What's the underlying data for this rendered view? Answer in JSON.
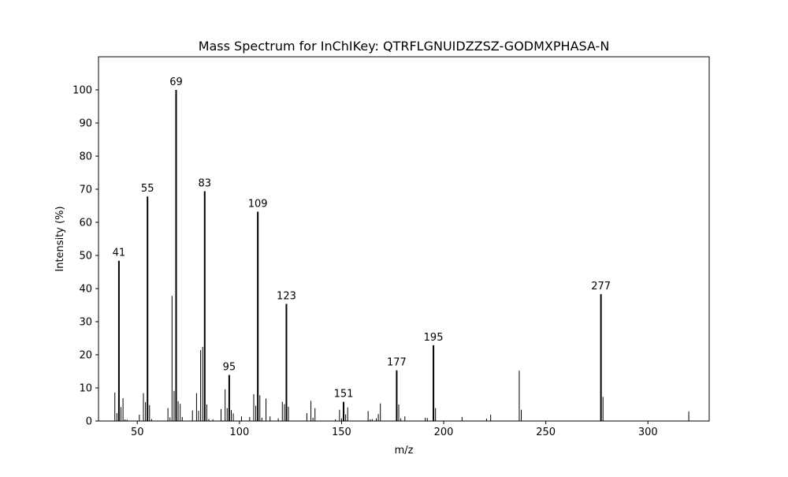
{
  "chart_data": {
    "type": "bar",
    "title": "Mass Spectrum for InChIKey: QTRFLGNUIDZZSZ-GODMXPHASA-N",
    "xlabel": "m/z",
    "ylabel": "Intensity (%)",
    "xlim": [
      31,
      330
    ],
    "ylim": [
      0,
      110
    ],
    "xticks": [
      50,
      100,
      150,
      200,
      250,
      300
    ],
    "yticks": [
      0,
      10,
      20,
      30,
      40,
      50,
      60,
      70,
      80,
      90,
      100
    ],
    "grid": false,
    "bar_color": "#000000",
    "peaks": [
      {
        "mz": 39,
        "intensity": 8.6
      },
      {
        "mz": 40,
        "intensity": 2.4
      },
      {
        "mz": 41,
        "intensity": 48.4,
        "label": "41"
      },
      {
        "mz": 42,
        "intensity": 4.2
      },
      {
        "mz": 43,
        "intensity": 6.9
      },
      {
        "mz": 44,
        "intensity": 0.5
      },
      {
        "mz": 45,
        "intensity": 0.4
      },
      {
        "mz": 51,
        "intensity": 1.9
      },
      {
        "mz": 53,
        "intensity": 8.4
      },
      {
        "mz": 54,
        "intensity": 5.7
      },
      {
        "mz": 55,
        "intensity": 67.8,
        "label": "55"
      },
      {
        "mz": 56,
        "intensity": 4.8
      },
      {
        "mz": 57,
        "intensity": 0.6
      },
      {
        "mz": 65,
        "intensity": 3.9
      },
      {
        "mz": 66,
        "intensity": 1.1
      },
      {
        "mz": 67,
        "intensity": 37.8
      },
      {
        "mz": 68,
        "intensity": 9.1
      },
      {
        "mz": 69,
        "intensity": 100.0,
        "label": "69"
      },
      {
        "mz": 70,
        "intensity": 6.0
      },
      {
        "mz": 71,
        "intensity": 5.2
      },
      {
        "mz": 72,
        "intensity": 1.2
      },
      {
        "mz": 77,
        "intensity": 3.2
      },
      {
        "mz": 79,
        "intensity": 8.4
      },
      {
        "mz": 80,
        "intensity": 3.1
      },
      {
        "mz": 81,
        "intensity": 21.4
      },
      {
        "mz": 82,
        "intensity": 22.4
      },
      {
        "mz": 83,
        "intensity": 69.4,
        "label": "83"
      },
      {
        "mz": 84,
        "intensity": 5.0
      },
      {
        "mz": 85,
        "intensity": 0.6
      },
      {
        "mz": 87,
        "intensity": 0.5
      },
      {
        "mz": 91,
        "intensity": 3.6
      },
      {
        "mz": 93,
        "intensity": 9.6
      },
      {
        "mz": 94,
        "intensity": 3.9
      },
      {
        "mz": 95,
        "intensity": 13.9,
        "label": "95"
      },
      {
        "mz": 96,
        "intensity": 3.3
      },
      {
        "mz": 97,
        "intensity": 2.3
      },
      {
        "mz": 101,
        "intensity": 1.4
      },
      {
        "mz": 105,
        "intensity": 1.2
      },
      {
        "mz": 107,
        "intensity": 8.1
      },
      {
        "mz": 108,
        "intensity": 4.6
      },
      {
        "mz": 109,
        "intensity": 63.2,
        "label": "109"
      },
      {
        "mz": 110,
        "intensity": 7.8
      },
      {
        "mz": 111,
        "intensity": 1.0
      },
      {
        "mz": 113,
        "intensity": 6.8
      },
      {
        "mz": 115,
        "intensity": 1.4
      },
      {
        "mz": 119,
        "intensity": 0.8
      },
      {
        "mz": 121,
        "intensity": 5.8
      },
      {
        "mz": 122,
        "intensity": 5.1
      },
      {
        "mz": 123,
        "intensity": 35.4,
        "label": "123"
      },
      {
        "mz": 124,
        "intensity": 4.3
      },
      {
        "mz": 133,
        "intensity": 2.4
      },
      {
        "mz": 135,
        "intensity": 6.1
      },
      {
        "mz": 136,
        "intensity": 1.0
      },
      {
        "mz": 137,
        "intensity": 3.9
      },
      {
        "mz": 147,
        "intensity": 0.5
      },
      {
        "mz": 149,
        "intensity": 3.4
      },
      {
        "mz": 150,
        "intensity": 0.8
      },
      {
        "mz": 151,
        "intensity": 5.8,
        "label": "151"
      },
      {
        "mz": 152,
        "intensity": 2.0
      },
      {
        "mz": 153,
        "intensity": 4.1
      },
      {
        "mz": 163,
        "intensity": 3.0
      },
      {
        "mz": 164,
        "intensity": 0.5
      },
      {
        "mz": 165,
        "intensity": 0.6
      },
      {
        "mz": 167,
        "intensity": 0.8
      },
      {
        "mz": 168,
        "intensity": 2.1
      },
      {
        "mz": 169,
        "intensity": 5.3
      },
      {
        "mz": 177,
        "intensity": 15.3,
        "label": "177"
      },
      {
        "mz": 178,
        "intensity": 5.0
      },
      {
        "mz": 179,
        "intensity": 0.8
      },
      {
        "mz": 181,
        "intensity": 1.4
      },
      {
        "mz": 191,
        "intensity": 1.0
      },
      {
        "mz": 192,
        "intensity": 0.9
      },
      {
        "mz": 195,
        "intensity": 22.9,
        "label": "195"
      },
      {
        "mz": 196,
        "intensity": 3.9
      },
      {
        "mz": 209,
        "intensity": 1.2
      },
      {
        "mz": 221,
        "intensity": 0.7
      },
      {
        "mz": 223,
        "intensity": 1.9
      },
      {
        "mz": 237,
        "intensity": 15.2
      },
      {
        "mz": 238,
        "intensity": 3.4
      },
      {
        "mz": 277,
        "intensity": 38.3,
        "label": "277"
      },
      {
        "mz": 278,
        "intensity": 7.3
      },
      {
        "mz": 320,
        "intensity": 2.9
      }
    ]
  }
}
